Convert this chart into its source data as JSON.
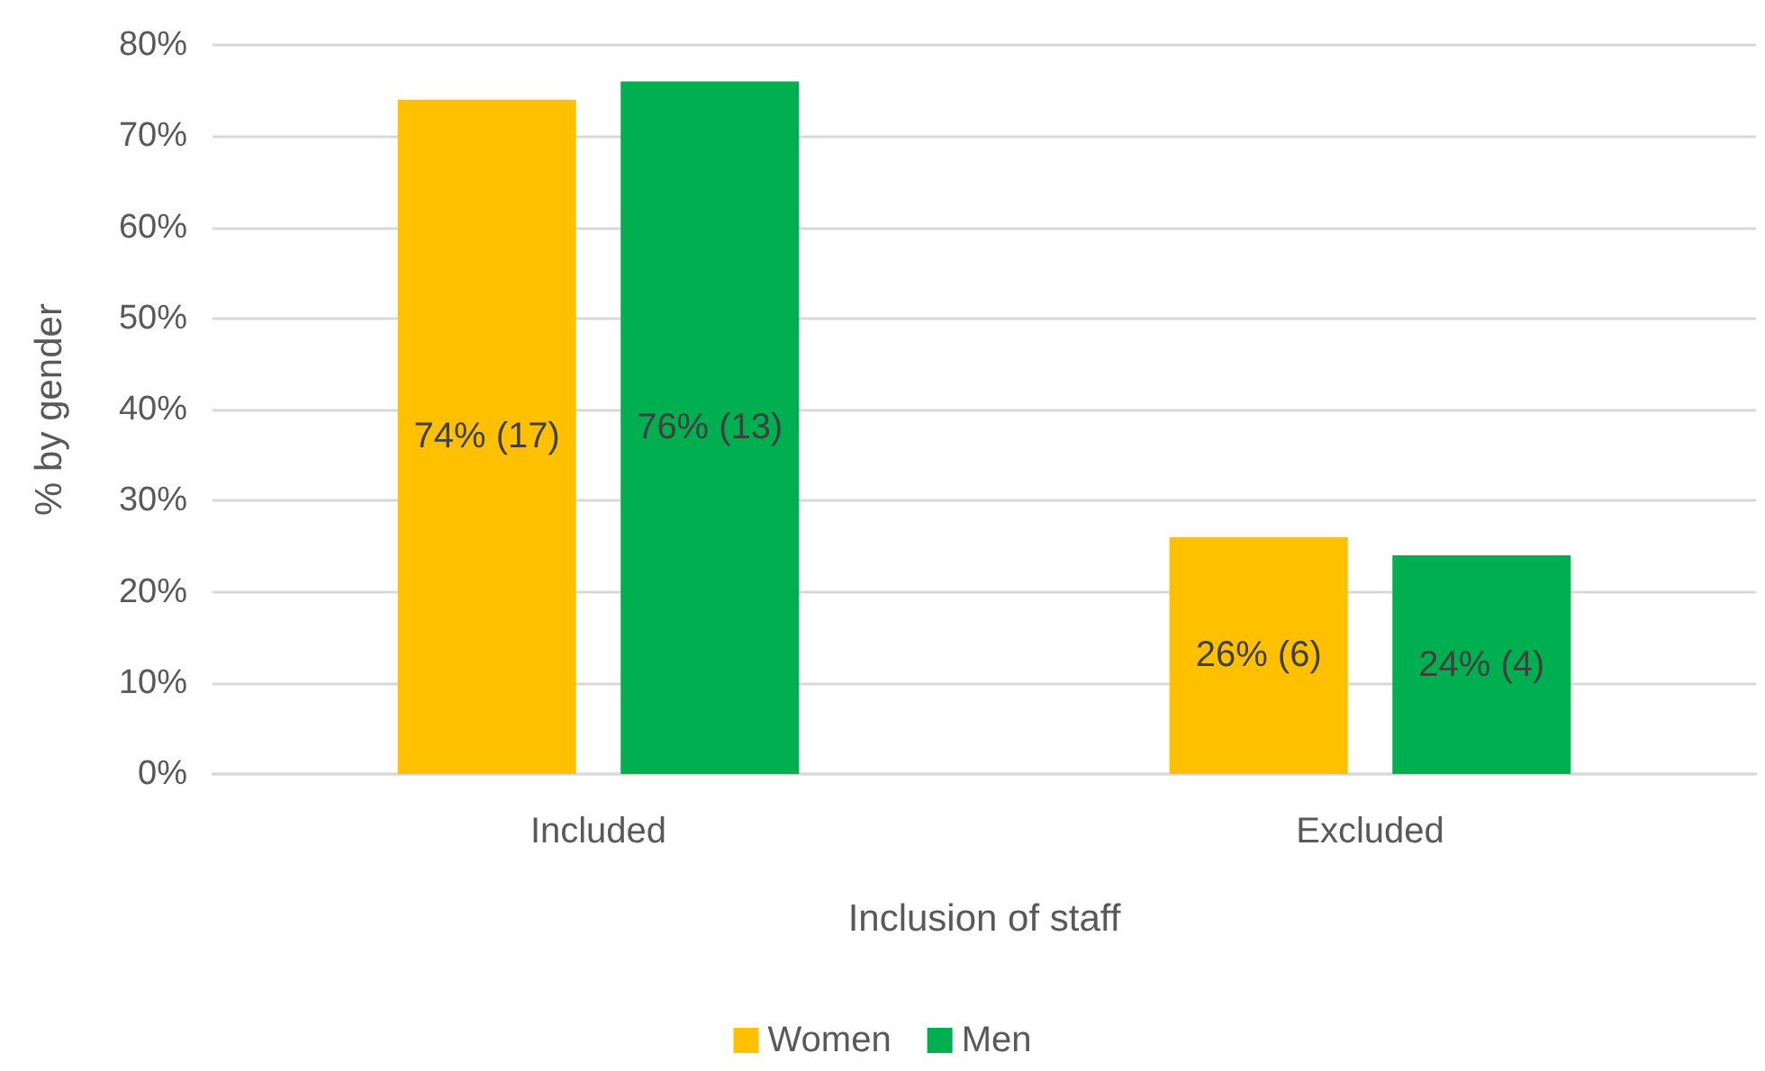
{
  "chart_data": {
    "type": "bar",
    "xlabel": "Inclusion of staff",
    "ylabel": "% by gender",
    "categories": [
      "Included",
      "Excluded"
    ],
    "series": [
      {
        "name": "Women",
        "color": "#ffc000",
        "values": [
          74,
          26
        ],
        "value_labels": [
          "74% (17)",
          "26% (6)"
        ]
      },
      {
        "name": "Men",
        "color": "#00b050",
        "values": [
          76,
          24
        ],
        "value_labels": [
          "76% (13)",
          "24% (4)"
        ]
      }
    ],
    "ylim": [
      0,
      80
    ],
    "yticks": [
      {
        "value": 0,
        "label": "0%"
      },
      {
        "value": 10,
        "label": "10%"
      },
      {
        "value": 20,
        "label": "20%"
      },
      {
        "value": 30,
        "label": "30%"
      },
      {
        "value": 40,
        "label": "40%"
      },
      {
        "value": 50,
        "label": "50%"
      },
      {
        "value": 60,
        "label": "60%"
      },
      {
        "value": 70,
        "label": "70%"
      },
      {
        "value": 80,
        "label": "80%"
      }
    ],
    "grid": "y",
    "legend": "bottom"
  }
}
